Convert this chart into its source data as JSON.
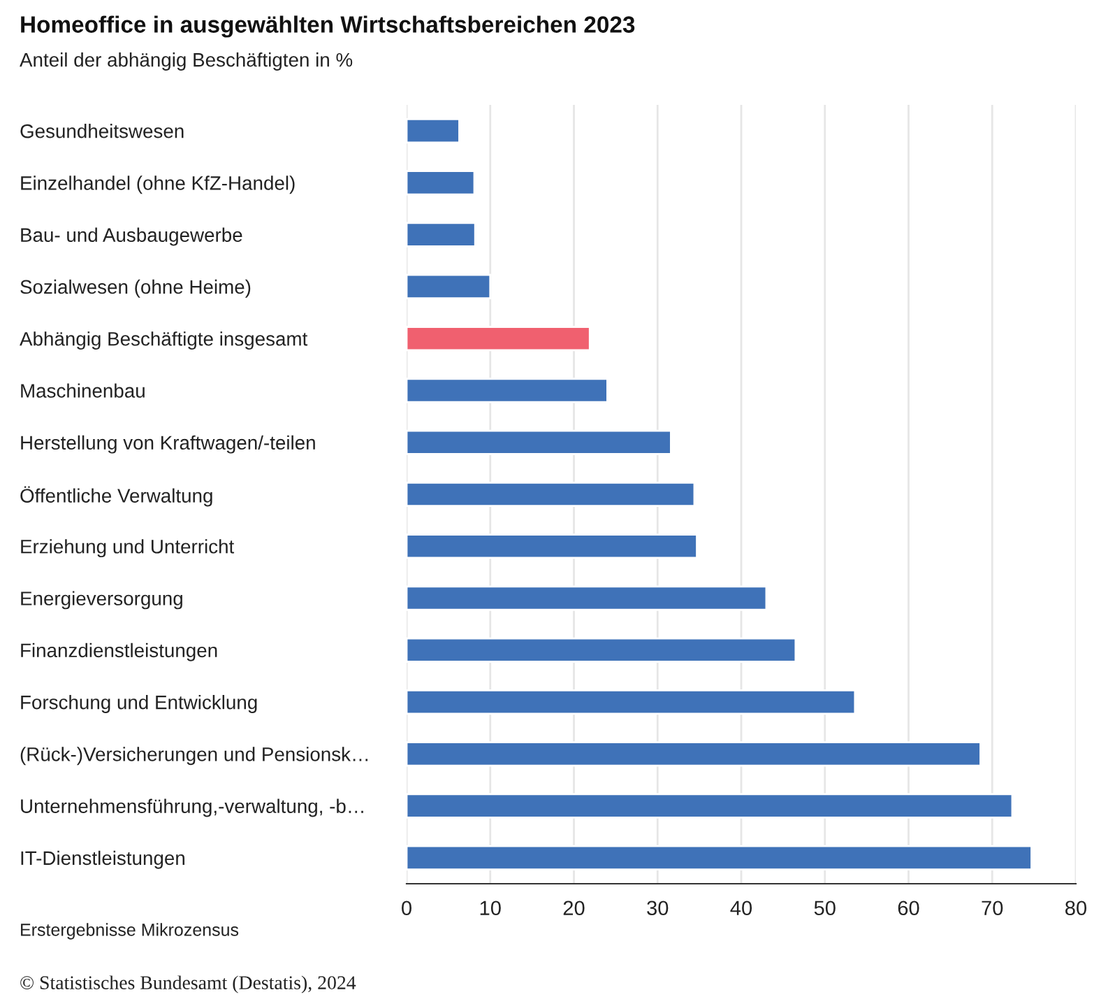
{
  "chart_data": {
    "type": "bar",
    "orientation": "horizontal",
    "title": "Homeoffice in ausgewählten Wirtschaftsbereichen 2023",
    "subtitle": "Anteil der abhängig Beschäftigten in %",
    "categories": [
      "Gesundheitswesen",
      "Einzelhandel (ohne KfZ-Handel)",
      "Bau- und Ausbaugewerbe",
      "Sozialwesen (ohne Heime)",
      "Abhängig Beschäftigte insgesamt",
      "Maschinenbau",
      "Herstellung von Kraftwagen/-teilen",
      "Öffentliche Verwaltung",
      "Erziehung und Unterricht",
      "Energieversorgung",
      "Finanzdienstleistungen",
      "Forschung und Entwicklung",
      "(Rück-)Versicherungen und Pensionsk…",
      "Unternehmensführung,-verwaltung, -b…",
      "IT-Dienstleistungen"
    ],
    "values": [
      6.3,
      8.1,
      8.2,
      10.0,
      21.9,
      24.0,
      31.6,
      34.4,
      34.7,
      43.0,
      46.5,
      53.6,
      68.6,
      72.4,
      74.7
    ],
    "colors": [
      "#3f72b8",
      "#3f72b8",
      "#3f72b8",
      "#3f72b8",
      "#f0606f",
      "#3f72b8",
      "#3f72b8",
      "#3f72b8",
      "#3f72b8",
      "#3f72b8",
      "#3f72b8",
      "#3f72b8",
      "#3f72b8",
      "#3f72b8",
      "#3f72b8"
    ],
    "xlim": [
      0,
      80
    ],
    "xticks": [
      0,
      10,
      20,
      30,
      40,
      50,
      60,
      70,
      80
    ],
    "grid": "x",
    "annotations": [
      "Erstergebnisse Mikrozensus",
      "© Statistisches Bundesamt (Destatis), 2024"
    ]
  }
}
